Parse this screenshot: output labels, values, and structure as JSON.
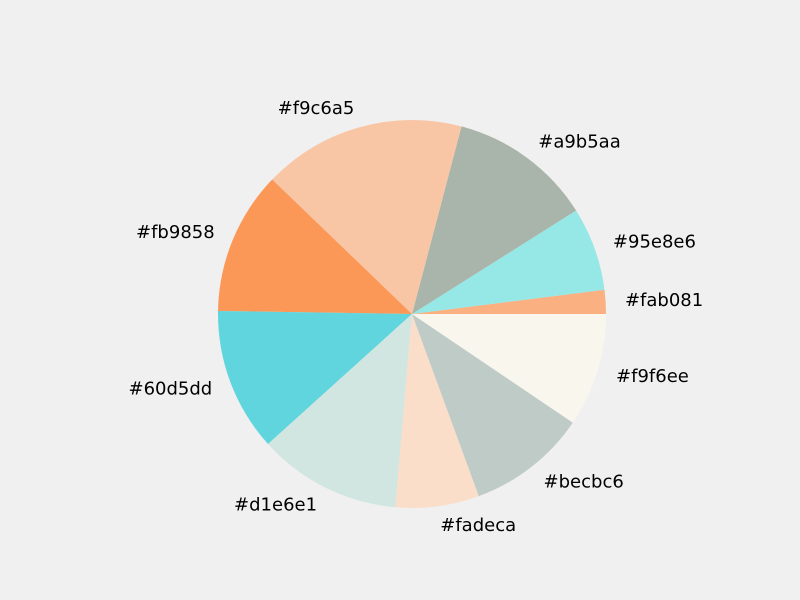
{
  "chart_data": {
    "type": "pie",
    "title": "",
    "slices": [
      {
        "label": "#fab081",
        "value": 2.0,
        "color": "#fab081"
      },
      {
        "label": "#95e8e6",
        "value": 7.0,
        "color": "#95e8e6"
      },
      {
        "label": "#a9b5aa",
        "value": 12.0,
        "color": "#a9b5aa"
      },
      {
        "label": "#f9c6a5",
        "value": 17.0,
        "color": "#f9c6a5"
      },
      {
        "label": "#fb9858",
        "value": 12.0,
        "color": "#fb9858"
      },
      {
        "label": "#60d5dd",
        "value": 12.0,
        "color": "#60d5dd"
      },
      {
        "label": "#d1e6e1",
        "value": 12.0,
        "color": "#d1e6e1"
      },
      {
        "label": "#fadeca",
        "value": 7.0,
        "color": "#fadeca"
      },
      {
        "label": "#becbc6",
        "value": 10.0,
        "color": "#becbc6"
      },
      {
        "label": "#f9f6ee",
        "value": 9.5,
        "color": "#f9f6ee"
      }
    ]
  }
}
